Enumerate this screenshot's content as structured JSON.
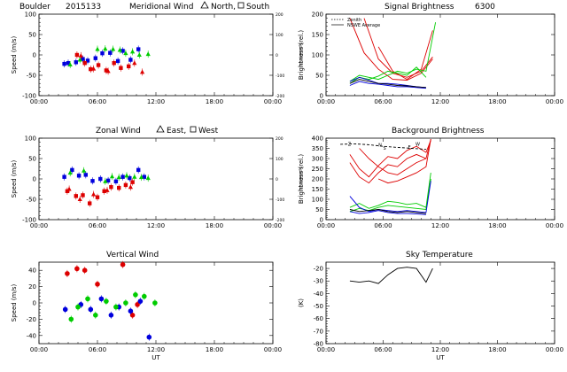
{
  "chart_data": [
    {
      "id": "meridional",
      "type": "scatter",
      "station": "Boulder",
      "date": "2015133",
      "title": "Meridional Wind",
      "legend_text": [
        "North,",
        "South"
      ],
      "ylabel": "Speed (m/s)",
      "y2label": "Speed (m/s)",
      "xlim": [
        0,
        24
      ],
      "ylim": [
        -100,
        100
      ],
      "y2lim": [
        -200,
        200
      ],
      "yticks": [
        -100,
        -50,
        0,
        50,
        100
      ],
      "y2ticks": [
        -200,
        -100,
        0,
        100,
        200
      ],
      "xticks": [
        "00:00",
        "06:00",
        "12:00",
        "18:00",
        "00:00"
      ],
      "series": [
        {
          "name": "south",
          "color": "#0000dd",
          "marker": "square",
          "points": [
            [
              2.6,
              -22
            ],
            [
              3.0,
              -20
            ],
            [
              3.8,
              -18
            ],
            [
              4.5,
              -10
            ],
            [
              5.0,
              -14
            ],
            [
              5.8,
              -8
            ],
            [
              6.5,
              4
            ],
            [
              7.3,
              5
            ],
            [
              8.1,
              -15
            ],
            [
              8.6,
              10
            ],
            [
              9.4,
              -12
            ],
            [
              10.2,
              14
            ]
          ]
        },
        {
          "name": "north",
          "color": "#00cc00",
          "marker": "triangle",
          "points": [
            [
              3.2,
              -24
            ],
            [
              4.2,
              -12
            ],
            [
              6.0,
              14
            ],
            [
              6.8,
              15
            ],
            [
              7.6,
              14
            ],
            [
              8.3,
              12
            ],
            [
              8.9,
              4
            ],
            [
              9.6,
              8
            ],
            [
              10.3,
              0
            ],
            [
              11.2,
              2
            ]
          ]
        },
        {
          "name": "south-red",
          "color": "#dd0000",
          "marker": "square",
          "points": [
            [
              3.9,
              0
            ],
            [
              4.7,
              -20
            ],
            [
              5.3,
              -35
            ],
            [
              6.1,
              -25
            ],
            [
              6.9,
              -38
            ],
            [
              7.7,
              -20
            ],
            [
              8.4,
              -32
            ],
            [
              9.2,
              -28
            ]
          ]
        },
        {
          "name": "north-red",
          "color": "#dd0000",
          "marker": "triangle",
          "points": [
            [
              4.3,
              -2
            ],
            [
              5.6,
              -34
            ],
            [
              7.1,
              -40
            ],
            [
              9.8,
              -20
            ],
            [
              10.6,
              -42
            ]
          ]
        }
      ]
    },
    {
      "id": "signal",
      "type": "line",
      "title": "Signal Brightness",
      "wavelength": "6300",
      "ylabel": "Brightness (rel.)",
      "legend": [
        "Zenith",
        "NSWE Average"
      ],
      "xlim": [
        0,
        24
      ],
      "ylim": [
        0,
        200
      ],
      "yticks": [
        0,
        50,
        100,
        150,
        200
      ],
      "xticks": [
        "00:00",
        "06:00",
        "12:00",
        "18:00",
        "00:00"
      ],
      "series": [
        {
          "name": "red-1",
          "color": "#dd0000",
          "x": [
            2.5,
            4,
            5.5,
            7,
            8.5,
            10,
            11.2
          ],
          "y": [
            190,
            105,
            65,
            40,
            38,
            55,
            90
          ]
        },
        {
          "name": "red-2",
          "color": "#dd0000",
          "x": [
            4,
            5.5,
            7,
            8.5,
            10,
            11.2
          ],
          "y": [
            190,
            90,
            55,
            45,
            60,
            95
          ]
        },
        {
          "name": "red-3",
          "color": "#dd0000",
          "x": [
            5.5,
            7,
            8.5,
            10,
            11.2
          ],
          "y": [
            120,
            60,
            40,
            65,
            160
          ]
        },
        {
          "name": "green-1",
          "color": "#00cc00",
          "x": [
            2.5,
            3.5,
            4.5,
            5.5,
            6.5,
            7.5,
            8.5,
            9.5,
            10.5,
            11.5
          ],
          "y": [
            35,
            50,
            45,
            40,
            50,
            60,
            55,
            65,
            60,
            180
          ]
        },
        {
          "name": "green-2",
          "color": "#00cc00",
          "x": [
            2.5,
            3.5,
            4.5,
            5.5,
            6.5,
            7.5,
            8.5,
            9.5,
            10.5
          ],
          "y": [
            30,
            45,
            40,
            48,
            60,
            55,
            50,
            70,
            45
          ]
        },
        {
          "name": "blue-1",
          "color": "#0000dd",
          "x": [
            2.5,
            3.5,
            4.5,
            5.5,
            6.5,
            7.5,
            8.5,
            9.5,
            10.5
          ],
          "y": [
            35,
            45,
            38,
            30,
            30,
            28,
            25,
            22,
            20
          ]
        },
        {
          "name": "blue-2",
          "color": "#0000dd",
          "x": [
            2.5,
            3.5,
            4.5,
            5.5,
            6.5,
            7.5,
            8.5,
            9.5,
            10.5
          ],
          "y": [
            25,
            35,
            30,
            28,
            25,
            22,
            22,
            20,
            18
          ]
        },
        {
          "name": "black",
          "color": "#000000",
          "x": [
            2.5,
            3.5,
            4.5,
            5.5,
            6.5,
            7.5,
            8.5,
            9.5,
            10.5
          ],
          "y": [
            30,
            40,
            35,
            30,
            28,
            25,
            24,
            22,
            20
          ]
        }
      ]
    },
    {
      "id": "zonal",
      "type": "scatter",
      "title": "Zonal Wind",
      "legend_text": [
        "East,",
        "West"
      ],
      "ylabel": "Speed (m/s)",
      "y2label": "Speed (m/s)",
      "xlim": [
        0,
        24
      ],
      "ylim": [
        -100,
        100
      ],
      "y2lim": [
        -200,
        200
      ],
      "yticks": [
        -100,
        -50,
        0,
        50,
        100
      ],
      "y2ticks": [
        -200,
        -100,
        0,
        100,
        200
      ],
      "xticks": [
        "00:00",
        "06:00",
        "12:00",
        "18:00",
        "00:00"
      ],
      "series": [
        {
          "name": "west-blue",
          "color": "#0000dd",
          "marker": "square",
          "points": [
            [
              2.6,
              5
            ],
            [
              3.4,
              22
            ],
            [
              4.1,
              8
            ],
            [
              4.8,
              10
            ],
            [
              5.5,
              -5
            ],
            [
              6.3,
              0
            ],
            [
              7.1,
              -4
            ],
            [
              7.9,
              -6
            ],
            [
              8.6,
              5
            ],
            [
              9.3,
              2
            ],
            [
              10.2,
              22
            ],
            [
              10.8,
              5
            ]
          ]
        },
        {
          "name": "east-green",
          "color": "#00cc00",
          "marker": "triangle",
          "points": [
            [
              3.2,
              15
            ],
            [
              4.6,
              20
            ],
            [
              6.8,
              -6
            ],
            [
              7.5,
              6
            ],
            [
              8.2,
              4
            ],
            [
              9.0,
              8
            ],
            [
              9.8,
              5
            ],
            [
              10.5,
              4
            ],
            [
              11.2,
              2
            ]
          ]
        },
        {
          "name": "west-red",
          "color": "#dd0000",
          "marker": "square",
          "points": [
            [
              2.9,
              -30
            ],
            [
              3.8,
              -42
            ],
            [
              4.5,
              -40
            ],
            [
              5.2,
              -60
            ],
            [
              6.0,
              -45
            ],
            [
              6.7,
              -30
            ],
            [
              7.4,
              -20
            ],
            [
              8.2,
              -22
            ],
            [
              8.9,
              -15
            ],
            [
              9.6,
              -8
            ]
          ]
        },
        {
          "name": "east-red",
          "color": "#dd0000",
          "marker": "triangle",
          "points": [
            [
              3.1,
              -25
            ],
            [
              4.2,
              -50
            ],
            [
              5.6,
              -38
            ],
            [
              7.0,
              -28
            ],
            [
              9.4,
              -20
            ]
          ]
        }
      ]
    },
    {
      "id": "background",
      "type": "line",
      "title": "Background Brightness",
      "ylabel": "Brightness (rel.)",
      "annotations": [
        "Z",
        "N",
        "S",
        "E",
        "W"
      ],
      "xlim": [
        0,
        24
      ],
      "ylim": [
        0,
        400
      ],
      "yticks": [
        0,
        50,
        100,
        150,
        200,
        250,
        300,
        350,
        400
      ],
      "xticks": [
        "00:00",
        "06:00",
        "12:00",
        "18:00",
        "00:00"
      ],
      "series": [
        {
          "name": "red-1",
          "color": "#dd0000",
          "x": [
            2.5,
            3.5,
            4.5,
            5.5,
            6.5,
            7.5,
            8.5,
            9.5,
            10.5,
            11
          ],
          "y": [
            320,
            250,
            210,
            265,
            310,
            300,
            340,
            360,
            330,
            390
          ]
        },
        {
          "name": "red-2",
          "color": "#dd0000",
          "x": [
            2.5,
            3.5,
            4.5,
            5.5,
            6.5,
            7.5,
            8.5,
            9.5,
            10.5,
            11
          ],
          "y": [
            280,
            210,
            180,
            230,
            270,
            260,
            300,
            320,
            300,
            395
          ]
        },
        {
          "name": "red-3",
          "color": "#dd0000",
          "x": [
            3.5,
            4.5,
            5.5,
            6.5,
            7.5,
            8.5,
            9.5,
            10.5
          ],
          "y": [
            350,
            300,
            260,
            230,
            220,
            250,
            280,
            300
          ]
        },
        {
          "name": "red-4",
          "color": "#dd0000",
          "x": [
            5.5,
            6.5,
            7.5,
            8.5,
            9.5,
            10.5,
            11
          ],
          "y": [
            200,
            180,
            190,
            210,
            230,
            260,
            395
          ]
        },
        {
          "name": "black-dash",
          "color": "#000000",
          "dash": "3,2",
          "x": [
            1.5,
            3,
            4.5,
            6,
            7.5,
            9,
            10.5
          ],
          "y": [
            370,
            372,
            368,
            360,
            355,
            350,
            345
          ]
        },
        {
          "name": "green-1",
          "color": "#00cc00",
          "x": [
            2.5,
            3.5,
            4.5,
            5.5,
            6.5,
            7.5,
            8.5,
            9.5,
            10.5,
            11
          ],
          "y": [
            60,
            80,
            55,
            70,
            90,
            85,
            75,
            80,
            60,
            230
          ]
        },
        {
          "name": "green-2",
          "color": "#00cc00",
          "x": [
            2.5,
            3.5,
            4.5,
            5.5,
            6.5,
            7.5,
            8.5,
            9.5,
            10.5,
            11
          ],
          "y": [
            40,
            55,
            45,
            60,
            70,
            65,
            60,
            55,
            50,
            200
          ]
        },
        {
          "name": "blue-1",
          "color": "#0000dd",
          "x": [
            2.5,
            3.5,
            4.5,
            5.5,
            6.5,
            7.5,
            8.5,
            9.5,
            10.5,
            11
          ],
          "y": [
            115,
            60,
            40,
            50,
            45,
            40,
            45,
            40,
            35,
            190
          ]
        },
        {
          "name": "blue-2",
          "color": "#0000dd",
          "x": [
            2.5,
            3.5,
            4.5,
            5.5,
            6.5,
            7.5,
            8.5,
            9.5,
            10.5
          ],
          "y": [
            40,
            30,
            35,
            45,
            35,
            30,
            30,
            28,
            25
          ]
        },
        {
          "name": "black-1",
          "color": "#000000",
          "x": [
            2.5,
            3.5,
            4.5,
            5.5,
            6.5,
            7.5,
            8.5,
            9.5,
            10.5
          ],
          "y": [
            50,
            40,
            45,
            50,
            40,
            35,
            40,
            35,
            30
          ]
        }
      ]
    },
    {
      "id": "vertical",
      "type": "scatter",
      "title": "Vertical Wind",
      "ylabel": "Speed (m/s)",
      "xlabel": "UT",
      "xlim": [
        0,
        24
      ],
      "ylim": [
        -50,
        50
      ],
      "yticks": [
        -40,
        -20,
        0,
        20,
        40
      ],
      "xticks": [
        "00:00",
        "06:00",
        "12:00",
        "18:00",
        "00:00"
      ],
      "series": [
        {
          "name": "red",
          "color": "#dd0000",
          "marker": "circle",
          "points": [
            [
              2.9,
              36
            ],
            [
              3.9,
              42
            ],
            [
              4.7,
              40
            ],
            [
              6.0,
              23
            ],
            [
              8.6,
              47
            ],
            [
              9.6,
              -15
            ],
            [
              10.1,
              -2
            ]
          ]
        },
        {
          "name": "blue",
          "color": "#0000dd",
          "marker": "circle",
          "points": [
            [
              2.7,
              -8
            ],
            [
              4.3,
              -2
            ],
            [
              5.3,
              -8
            ],
            [
              6.4,
              5
            ],
            [
              7.4,
              -15
            ],
            [
              8.2,
              -5
            ],
            [
              9.4,
              -10
            ],
            [
              10.4,
              2
            ],
            [
              11.3,
              -42
            ]
          ]
        },
        {
          "name": "green",
          "color": "#00cc00",
          "marker": "circle",
          "points": [
            [
              3.3,
              -20
            ],
            [
              4.0,
              -5
            ],
            [
              5.0,
              5
            ],
            [
              5.8,
              -15
            ],
            [
              6.9,
              2
            ],
            [
              7.9,
              -5
            ],
            [
              8.9,
              0
            ],
            [
              9.9,
              10
            ],
            [
              10.8,
              8
            ],
            [
              11.9,
              0
            ]
          ]
        }
      ]
    },
    {
      "id": "sky",
      "type": "line",
      "title": "Sky Temperature",
      "ylabel": "(K)",
      "xlabel": "UT",
      "xlim": [
        0,
        24
      ],
      "ylim": [
        -80,
        -15
      ],
      "yticks": [
        -80,
        -70,
        -60,
        -50,
        -40,
        -30,
        -20
      ],
      "xticks": [
        "00:00",
        "06:00",
        "12:00",
        "18:00",
        "00:00"
      ],
      "series": [
        {
          "name": "black",
          "color": "#000000",
          "x": [
            2.5,
            3.5,
            4.5,
            5.5,
            6.5,
            7.5,
            8.5,
            9.5,
            10.5,
            11.2
          ],
          "y": [
            -30,
            -31,
            -30,
            -32,
            -25,
            -20,
            -19,
            -20,
            -31,
            -20
          ]
        }
      ]
    }
  ]
}
